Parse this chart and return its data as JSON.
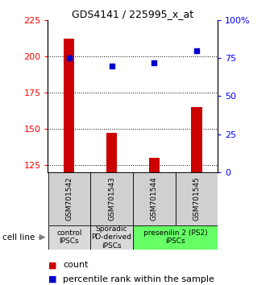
{
  "title": "GDS4141 / 225995_x_at",
  "samples": [
    "GSM701542",
    "GSM701543",
    "GSM701544",
    "GSM701545"
  ],
  "counts": [
    212,
    147,
    130,
    165
  ],
  "percentiles": [
    75,
    70,
    72,
    80
  ],
  "ylim_left": [
    120,
    225
  ],
  "ylim_right": [
    0,
    100
  ],
  "yticks_left": [
    125,
    150,
    175,
    200,
    225
  ],
  "yticks_right": [
    0,
    25,
    50,
    75,
    100
  ],
  "ytick_labels_right": [
    "0",
    "25",
    "50",
    "75",
    "100%"
  ],
  "bar_color": "#cc0000",
  "dot_color": "#0000cc",
  "groups": [
    {
      "label": "control\nIPSCs",
      "start": 0,
      "end": 1,
      "color": "#d9d9d9"
    },
    {
      "label": "Sporadic\nPD-derived\niPSCs",
      "start": 1,
      "end": 2,
      "color": "#d9d9d9"
    },
    {
      "label": "presenilin 2 (PS2)\niPSCs",
      "start": 2,
      "end": 4,
      "color": "#66ff66"
    }
  ],
  "cell_line_label": "cell line",
  "legend_count_label": "count",
  "legend_percentile_label": "percentile rank within the sample",
  "bar_width": 0.25,
  "title_fontsize": 9,
  "tick_fontsize": 8,
  "sample_fontsize": 6.5,
  "group_fontsize": 6.5,
  "legend_fontsize": 8
}
